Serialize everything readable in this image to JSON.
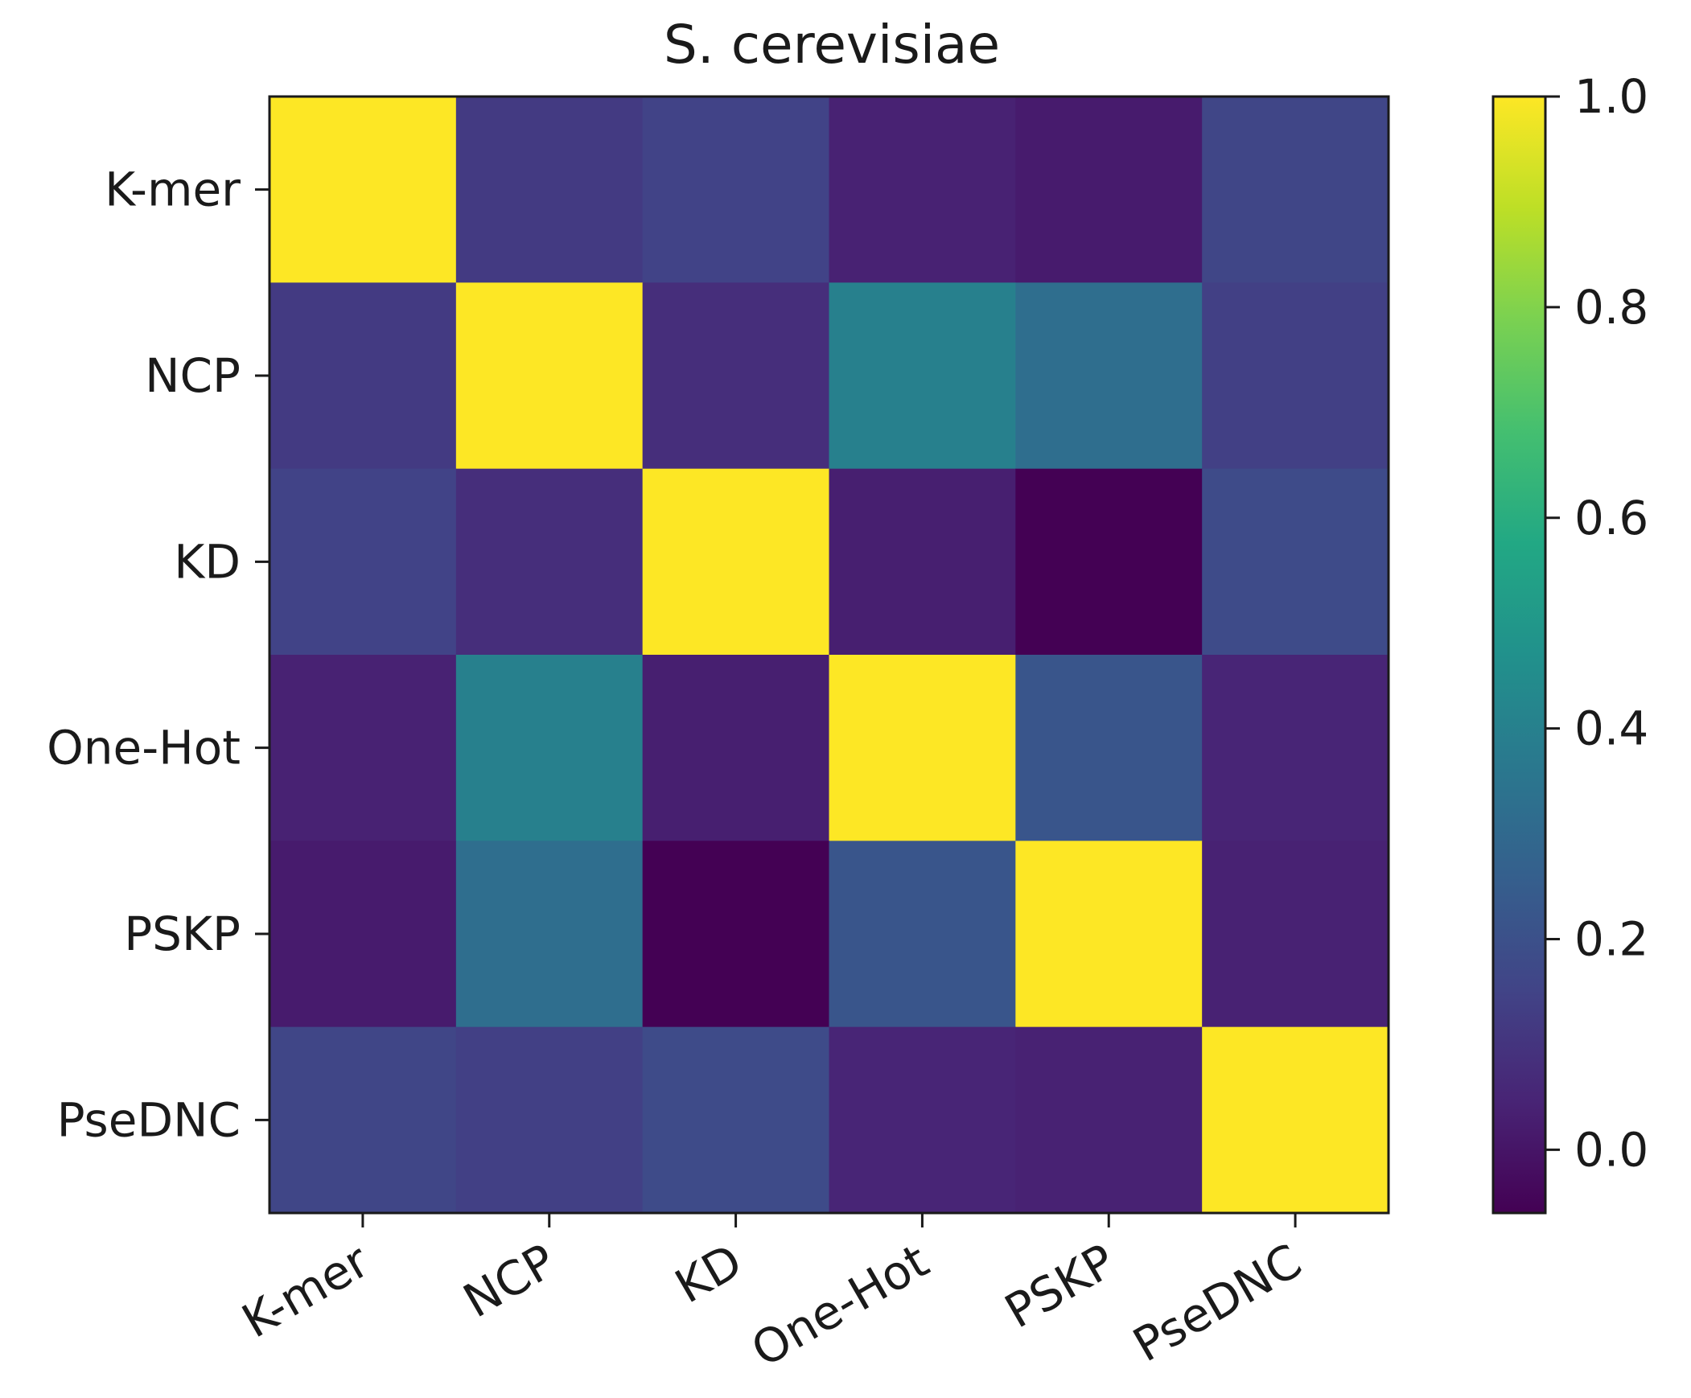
{
  "chart_data": {
    "type": "heatmap",
    "title": "S. cerevisiae",
    "xlabel": "",
    "ylabel": "",
    "x_categories": [
      "K-mer",
      "NCP",
      "KD",
      "One-Hot",
      "PSKP",
      "PseDNC"
    ],
    "y_categories": [
      "K-mer",
      "NCP",
      "KD",
      "One-Hot",
      "PSKP",
      "PseDNC"
    ],
    "matrix": [
      [
        1.0,
        0.12,
        0.15,
        0.04,
        0.02,
        0.16
      ],
      [
        0.12,
        1.0,
        0.08,
        0.4,
        0.32,
        0.14
      ],
      [
        0.15,
        0.08,
        1.0,
        0.03,
        -0.06,
        0.18
      ],
      [
        0.04,
        0.4,
        0.03,
        1.0,
        0.22,
        0.05
      ],
      [
        0.02,
        0.32,
        -0.06,
        0.22,
        1.0,
        0.04
      ],
      [
        0.16,
        0.14,
        0.18,
        0.05,
        0.04,
        1.0
      ]
    ],
    "colorbar": {
      "colormap": "viridis",
      "vmin": -0.06,
      "vmax": 1.0,
      "ticks": [
        0.0,
        0.2,
        0.4,
        0.6,
        0.8,
        1.0
      ],
      "tick_labels": [
        "0.0",
        "0.2",
        "0.4",
        "0.6",
        "0.8",
        "1.0"
      ]
    }
  }
}
